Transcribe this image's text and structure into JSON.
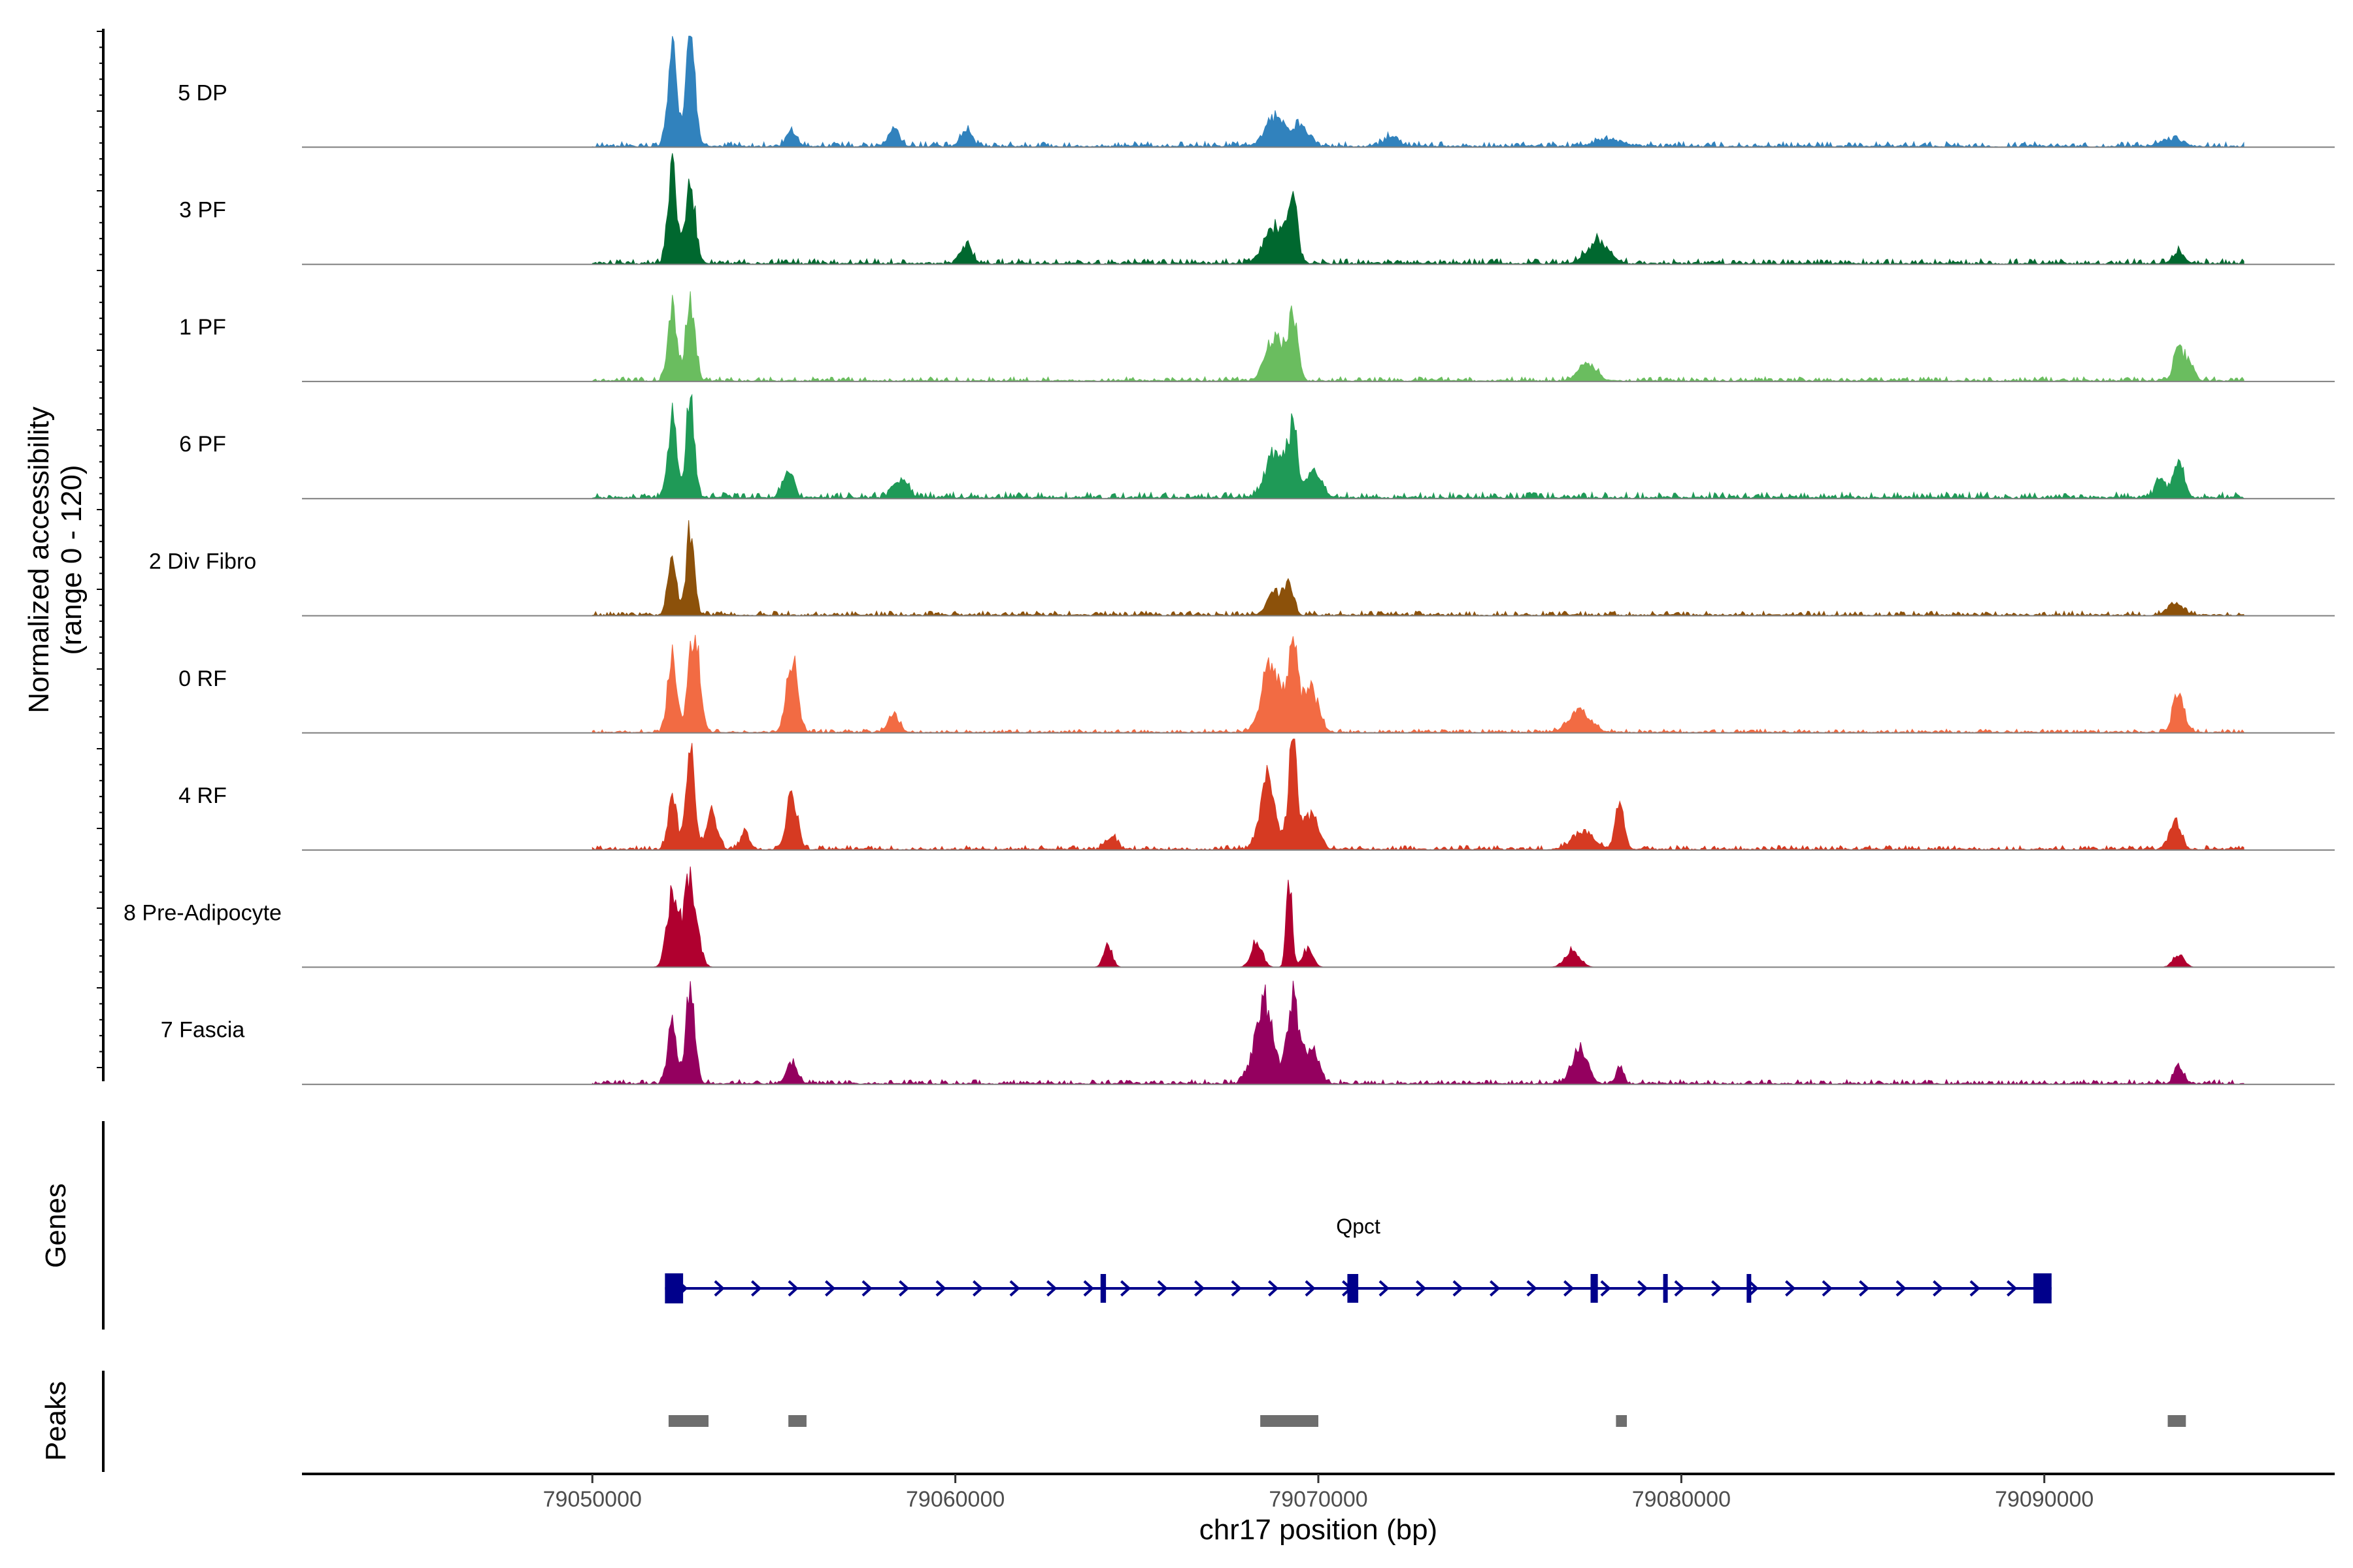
{
  "chart_data": {
    "type": "area",
    "title": "",
    "ylabel_line1": "Normalized accessibility",
    "ylabel_line2": "(range 0 - 120)",
    "xlabel": "chr17 position (bp)",
    "xlim": [
      79042000,
      79098000
    ],
    "ylim": [
      0,
      120
    ],
    "x_ticks": [
      79050000,
      79060000,
      79070000,
      79080000,
      79090000
    ],
    "x_tick_labels": [
      "79050000",
      "79060000",
      "79070000",
      "79080000",
      "79090000"
    ],
    "colors": {
      "5 DP": "#3182bd",
      "3 PF": "#00682f",
      "1 PF": "#6abd5f",
      "6 PF": "#1f9a57",
      "2 Div Fibro": "#8c510a",
      "0 RF": "#f26b43",
      "4 RF": "#d63a22",
      "8 Pre-Adipocyte": "#b0002f",
      "7 Fascia": "#94005f",
      "gene": "#00008b",
      "peak": "#6e6e6e"
    },
    "series": [
      {
        "name": "5 DP",
        "baseline": 6,
        "peaks": [
          [
            79052200,
            110,
            120
          ],
          [
            79052700,
            120,
            130
          ],
          [
            79055500,
            16,
            150
          ],
          [
            79058300,
            22,
            150
          ],
          [
            79060300,
            18,
            150
          ],
          [
            79068800,
            34,
            260
          ],
          [
            79069500,
            22,
            220
          ],
          [
            79072000,
            10,
            200
          ],
          [
            79078000,
            8,
            400
          ],
          [
            79093500,
            8,
            300
          ]
        ]
      },
      {
        "name": "3 PF",
        "baseline": 6,
        "peaks": [
          [
            79052200,
            110,
            120
          ],
          [
            79052700,
            95,
            130
          ],
          [
            79060300,
            22,
            150
          ],
          [
            79068800,
            40,
            300
          ],
          [
            79069300,
            62,
            130
          ],
          [
            79077700,
            25,
            300
          ],
          [
            79093700,
            14,
            150
          ]
        ]
      },
      {
        "name": "1 PF",
        "baseline": 5,
        "peaks": [
          [
            79052200,
            85,
            120
          ],
          [
            79052700,
            90,
            130
          ],
          [
            79068800,
            50,
            250
          ],
          [
            79069300,
            70,
            130
          ],
          [
            79077400,
            20,
            250
          ],
          [
            79093700,
            36,
            130
          ],
          [
            79094000,
            22,
            130
          ]
        ]
      },
      {
        "name": "6 PF",
        "baseline": 7,
        "peaks": [
          [
            79052200,
            90,
            120
          ],
          [
            79052700,
            118,
            110
          ],
          [
            79055400,
            25,
            150
          ],
          [
            79058500,
            20,
            200
          ],
          [
            79068800,
            50,
            250
          ],
          [
            79069300,
            75,
            130
          ],
          [
            79069900,
            30,
            200
          ],
          [
            79093700,
            40,
            150
          ],
          [
            79093200,
            18,
            150
          ]
        ]
      },
      {
        "name": "2 Div Fibro",
        "baseline": 5,
        "peaks": [
          [
            79052200,
            60,
            120
          ],
          [
            79052700,
            100,
            110
          ],
          [
            79068800,
            26,
            200
          ],
          [
            79069200,
            35,
            120
          ],
          [
            79093600,
            14,
            200
          ]
        ]
      },
      {
        "name": "0 RF",
        "baseline": 4,
        "peaks": [
          [
            79052200,
            90,
            120
          ],
          [
            79052800,
            120,
            150
          ],
          [
            79055500,
            86,
            150
          ],
          [
            79058300,
            22,
            150
          ],
          [
            79068700,
            80,
            250
          ],
          [
            79069300,
            100,
            140
          ],
          [
            79069800,
            50,
            200
          ],
          [
            79077200,
            25,
            300
          ],
          [
            79093700,
            45,
            150
          ]
        ]
      },
      {
        "name": "4 RF",
        "baseline": 5,
        "peaks": [
          [
            79052200,
            60,
            120
          ],
          [
            79052700,
            120,
            120
          ],
          [
            79053300,
            40,
            150
          ],
          [
            79054200,
            20,
            120
          ],
          [
            79055500,
            60,
            150
          ],
          [
            79064300,
            15,
            150
          ],
          [
            79068600,
            85,
            200
          ],
          [
            79069300,
            120,
            120
          ],
          [
            79069800,
            40,
            200
          ],
          [
            79077300,
            20,
            300
          ],
          [
            79078300,
            58,
            120
          ],
          [
            79093600,
            35,
            150
          ]
        ]
      },
      {
        "name": "8 Pre-Adipocyte",
        "baseline": 0,
        "peaks": [
          [
            79052200,
            80,
            150
          ],
          [
            79052700,
            100,
            180
          ],
          [
            79064200,
            25,
            120
          ],
          [
            79068300,
            30,
            150
          ],
          [
            79069200,
            98,
            80
          ],
          [
            79069700,
            20,
            150
          ],
          [
            79077000,
            20,
            200
          ],
          [
            79093700,
            15,
            150
          ]
        ]
      },
      {
        "name": "7 Fascia",
        "baseline": 5,
        "peaks": [
          [
            79052200,
            75,
            120
          ],
          [
            79052700,
            120,
            120
          ],
          [
            79055500,
            25,
            150
          ],
          [
            79068500,
            95,
            250
          ],
          [
            79069300,
            100,
            150
          ],
          [
            79069800,
            40,
            200
          ],
          [
            79077200,
            45,
            200
          ],
          [
            79078300,
            20,
            100
          ],
          [
            79093700,
            20,
            120
          ]
        ]
      }
    ],
    "gene": {
      "name": "Qpct",
      "strand": "+",
      "start": 79052000,
      "end": 79090200,
      "exons": [
        [
          79052000,
          79052500
        ],
        [
          79064000,
          79064150
        ],
        [
          79070800,
          79071100
        ],
        [
          79077500,
          79077700
        ],
        [
          79079500,
          79079600
        ],
        [
          79081800,
          79081900
        ],
        [
          79089700,
          79090200
        ]
      ]
    },
    "peaks_track": [
      [
        79052100,
        79053200
      ],
      [
        79055400,
        79055900
      ],
      [
        79068400,
        79070000
      ],
      [
        79078200,
        79078500
      ],
      [
        79093400,
        79093900
      ]
    ]
  },
  "panel_labels": {
    "genes": "Genes",
    "peaks": "Peaks"
  }
}
